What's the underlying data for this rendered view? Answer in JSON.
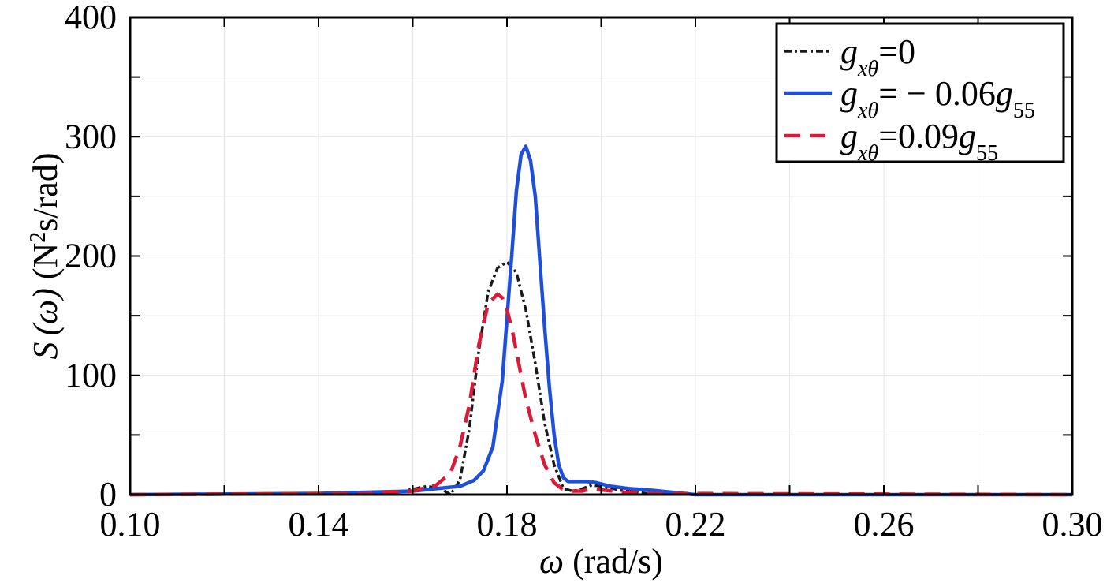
{
  "chart_data": {
    "type": "line",
    "x_ticks": [
      "0.10",
      "0.14",
      "0.18",
      "0.22",
      "0.26",
      "0.30"
    ],
    "y_ticks": [
      "0",
      "100",
      "200",
      "300",
      "400"
    ],
    "xlim": [
      0.1,
      0.3
    ],
    "ylim": [
      0,
      400
    ],
    "grid": true,
    "legend_position": "top-right",
    "xlabel": {
      "symbol": "ω",
      "unit": " (rad/s)"
    },
    "ylabel": {
      "symbol": "S",
      "arg": "(ω)",
      "unit_pre": " (N",
      "unit_sup": "2",
      "unit_post": "s/rad)"
    },
    "series": [
      {
        "name": "g_xθ=0",
        "legend": {
          "sym": "g",
          "sub": "xθ",
          "rest": "=0",
          "sym2": "",
          "sub2": ""
        },
        "color": "#1a1a1a",
        "style": "dashdot",
        "width": 3.5,
        "x": [
          0.1,
          0.15,
          0.158,
          0.163,
          0.166,
          0.168,
          0.17,
          0.172,
          0.174,
          0.176,
          0.178,
          0.18,
          0.182,
          0.184,
          0.186,
          0.188,
          0.19,
          0.192,
          0.194,
          0.196,
          0.198,
          0.2,
          0.205,
          0.21,
          0.22,
          0.3
        ],
        "y": [
          0,
          1,
          3,
          7,
          5,
          0,
          12,
          55,
          120,
          170,
          190,
          195,
          186,
          155,
          110,
          60,
          25,
          5,
          3,
          5,
          8,
          7,
          3,
          1,
          0,
          0
        ]
      },
      {
        "name": "g_xθ=−0.06g_55",
        "legend": {
          "sym": "g",
          "sub": "xθ",
          "rest": "= − 0.06",
          "sym2": "g",
          "sub2": "55"
        },
        "color": "#1f4fd9",
        "style": "solid",
        "width": 4.5,
        "x": [
          0.1,
          0.14,
          0.16,
          0.165,
          0.17,
          0.173,
          0.175,
          0.177,
          0.179,
          0.181,
          0.182,
          0.183,
          0.184,
          0.185,
          0.186,
          0.187,
          0.188,
          0.189,
          0.19,
          0.191,
          0.192,
          0.193,
          0.195,
          0.197,
          0.199,
          0.202,
          0.206,
          0.21,
          0.215,
          0.22,
          0.3
        ],
        "y": [
          0,
          1,
          3,
          5,
          7,
          12,
          20,
          40,
          95,
          200,
          255,
          285,
          292,
          280,
          250,
          195,
          140,
          90,
          50,
          25,
          14,
          11,
          11,
          11,
          10,
          7,
          5,
          4,
          2,
          0,
          0
        ]
      },
      {
        "name": "g_xθ=0.09g_55",
        "legend": {
          "sym": "g",
          "sub": "xθ",
          "rest": "=0.09",
          "sym2": "g",
          "sub2": "55"
        },
        "color": "#d91a3a",
        "style": "dashed",
        "width": 4.5,
        "x": [
          0.1,
          0.15,
          0.16,
          0.165,
          0.168,
          0.17,
          0.172,
          0.174,
          0.176,
          0.178,
          0.179,
          0.18,
          0.181,
          0.182,
          0.183,
          0.184,
          0.186,
          0.188,
          0.19,
          0.192,
          0.194,
          0.196,
          0.198,
          0.2,
          0.205,
          0.21,
          0.3
        ],
        "y": [
          0,
          1,
          3,
          8,
          18,
          40,
          75,
          125,
          160,
          168,
          165,
          155,
          140,
          120,
          100,
          80,
          50,
          25,
          10,
          4,
          3,
          3,
          5,
          4,
          2,
          1,
          0
        ]
      }
    ]
  }
}
